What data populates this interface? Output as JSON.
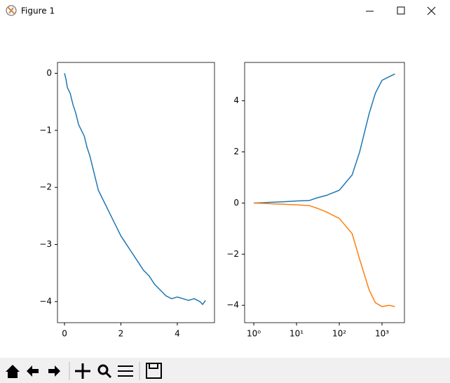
{
  "window": {
    "title": "Figure 1"
  },
  "chart_data": [
    {
      "type": "line",
      "x": [
        0,
        0.05,
        0.1,
        0.2,
        0.3,
        0.4,
        0.5,
        0.6,
        0.7,
        0.8,
        0.9,
        1.0,
        1.1,
        1.2,
        1.4,
        1.6,
        1.8,
        2.0,
        2.2,
        2.4,
        2.6,
        2.8,
        3.0,
        3.2,
        3.4,
        3.6,
        3.8,
        4.0,
        4.2,
        4.4,
        4.6,
        4.8,
        4.9,
        5.0
      ],
      "values": [
        0,
        -0.1,
        -0.25,
        -0.35,
        -0.55,
        -0.7,
        -0.9,
        -1.0,
        -1.1,
        -1.3,
        -1.45,
        -1.65,
        -1.85,
        -2.05,
        -2.25,
        -2.45,
        -2.65,
        -2.85,
        -3.0,
        -3.15,
        -3.3,
        -3.45,
        -3.55,
        -3.7,
        -3.8,
        -3.9,
        -3.95,
        -3.92,
        -3.95,
        -3.98,
        -3.95,
        -4.0,
        -4.05,
        -3.98
      ],
      "color": "#1f77b4",
      "xlim": [
        -0.25,
        5.32
      ],
      "ylim": [
        -4.37,
        0.19
      ],
      "xticks": [
        0,
        2,
        4
      ],
      "yticks": [
        0,
        {
          "value": -1,
          "label": "−1"
        },
        {
          "value": -2,
          "label": "−2"
        },
        {
          "value": -3,
          "label": "−3"
        },
        {
          "value": -4,
          "label": "−4"
        }
      ]
    },
    {
      "type": "line",
      "xscale": "log",
      "x": [
        1,
        2,
        5,
        10,
        20,
        30,
        50,
        100,
        200,
        300,
        500,
        700,
        1000,
        1500,
        2000
      ],
      "series": [
        {
          "color": "#1f77b4",
          "values": [
            0,
            0.02,
            0.05,
            0.08,
            0.1,
            0.2,
            0.3,
            0.5,
            1.1,
            2.0,
            3.5,
            4.3,
            4.8,
            4.95,
            5.05
          ]
        },
        {
          "color": "#ff7f0e",
          "values": [
            0,
            -0.02,
            -0.05,
            -0.07,
            -0.1,
            -0.2,
            -0.35,
            -0.6,
            -1.2,
            -2.2,
            -3.4,
            -3.9,
            -4.05,
            -4.0,
            -4.05
          ]
        }
      ],
      "xlim": [
        0.61,
        3350
      ],
      "ylim": [
        -4.68,
        5.5
      ],
      "xticks": [
        {
          "value": 1,
          "label": "10⁰"
        },
        {
          "value": 10,
          "label": "10¹"
        },
        {
          "value": 100,
          "label": "10²"
        },
        {
          "value": 1000,
          "label": "10³"
        }
      ],
      "yticks": [
        4,
        2,
        0,
        {
          "value": -2,
          "label": "−2"
        },
        {
          "value": -4,
          "label": "−4"
        }
      ]
    }
  ]
}
